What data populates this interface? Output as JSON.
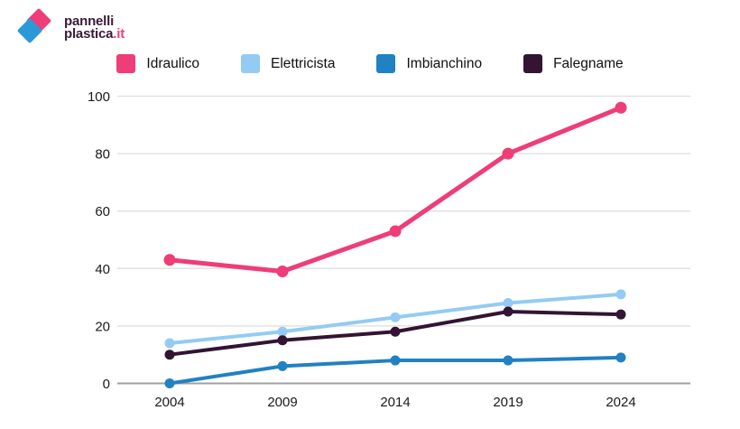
{
  "logo": {
    "line1": "pannelli",
    "line2": "plastica",
    "tld": ".it",
    "colors": {
      "pink": "#EE3D77",
      "blue": "#2B99D6",
      "text": "#3A1A38"
    }
  },
  "chart_data": {
    "type": "line",
    "categories": [
      "2004",
      "2009",
      "2014",
      "2019",
      "2024"
    ],
    "series": [
      {
        "name": "Idraulico",
        "color": "#EE3D77",
        "values": [
          43,
          39,
          53,
          80,
          96
        ],
        "line_width": 5,
        "marker_radius": 6.5
      },
      {
        "name": "Elettricista",
        "color": "#93CBF4",
        "values": [
          14,
          18,
          23,
          28,
          31
        ],
        "line_width": 4,
        "marker_radius": 5.5
      },
      {
        "name": "Imbianchino",
        "color": "#2081C3",
        "values": [
          0,
          6,
          8,
          8,
          9
        ],
        "line_width": 4,
        "marker_radius": 5.5
      },
      {
        "name": "Falegname",
        "color": "#331433",
        "values": [
          10,
          15,
          18,
          25,
          24
        ],
        "line_width": 4,
        "marker_radius": 5.5
      }
    ],
    "yticks": [
      0,
      20,
      40,
      60,
      80,
      100
    ],
    "ylim": [
      0,
      100
    ],
    "title": "",
    "xlabel": "",
    "ylabel": "",
    "grid": true,
    "legend_position": "top",
    "grid_color": "#e2e2e2",
    "axis_color": "#a0a0a0",
    "tick_color": "#1a1a1a"
  }
}
